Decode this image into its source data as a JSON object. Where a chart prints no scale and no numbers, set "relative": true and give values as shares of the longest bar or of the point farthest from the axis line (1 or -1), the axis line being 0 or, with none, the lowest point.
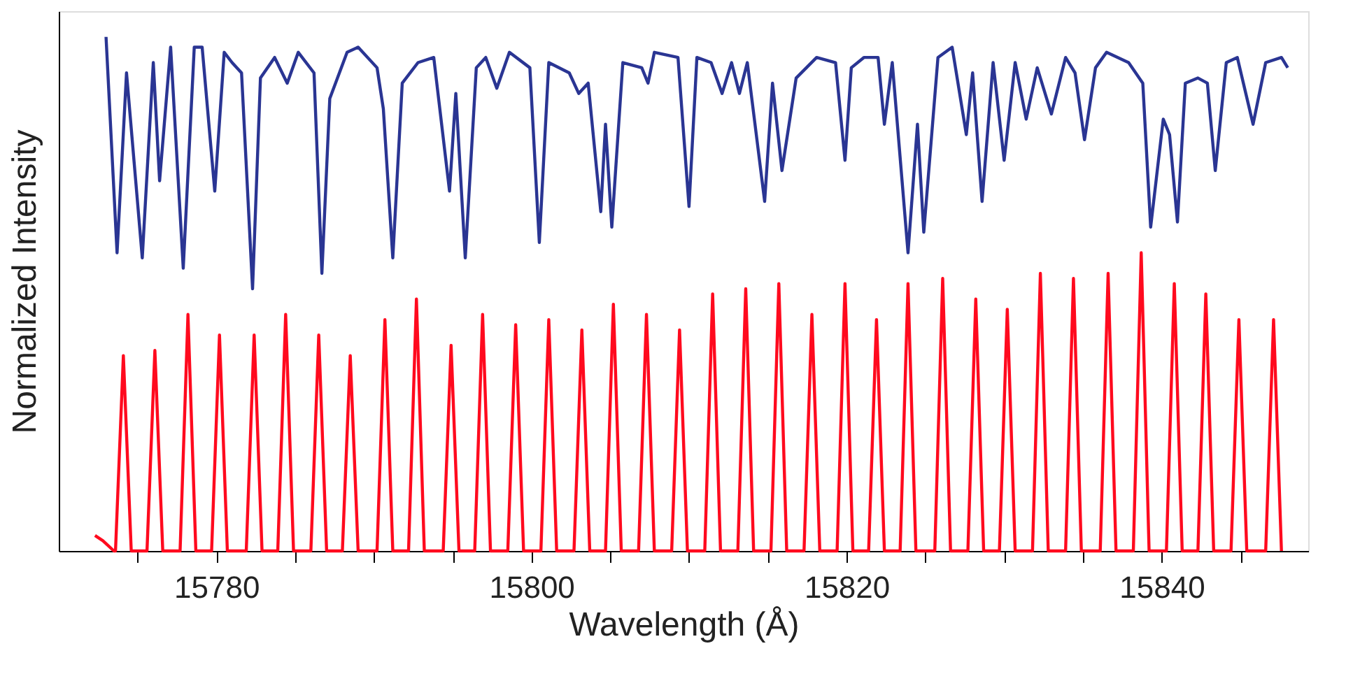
{
  "chart_data": {
    "type": "line",
    "relative": true,
    "xlabel": "Wavelength (Å)",
    "ylabel": "Normalized Intensity",
    "xlim": [
      15770.0,
      15849.3
    ],
    "xticks": [
      {
        "value": 15775,
        "label": null
      },
      15780,
      {
        "value": 15785,
        "label": null
      },
      {
        "value": 15790,
        "label": null
      },
      {
        "value": 15795,
        "label": null
      },
      15800,
      {
        "value": 15805,
        "label": null
      },
      {
        "value": 15810,
        "label": null
      },
      {
        "value": 15815,
        "label": null
      },
      15820,
      {
        "value": 15825,
        "label": null
      },
      {
        "value": 15830,
        "label": null
      },
      {
        "value": 15835,
        "label": null
      },
      15840,
      {
        "value": 15845,
        "label": null
      }
    ],
    "tick_labels": "x",
    "line_style": "solid",
    "series": [
      {
        "color": "#2a3593",
        "x": [
          15773.0,
          15773.7,
          15774.3,
          15775.3,
          15776.0,
          15776.4,
          15777.1,
          15777.9,
          15778.6,
          15779.1,
          15779.9,
          15780.5,
          15781.0,
          15781.6,
          15782.3,
          15782.8,
          15783.7,
          15784.5,
          15785.2,
          15786.2,
          15786.7,
          15787.2,
          15788.3,
          15789.0,
          15790.2,
          15790.6,
          15791.2,
          15791.8,
          15792.8,
          15793.8,
          15794.8,
          15795.2,
          15795.8,
          15796.5,
          15797.1,
          15797.8,
          15798.6,
          15799.9,
          15800.5,
          15801.1,
          15802.4,
          15803.0,
          15803.6,
          15804.4,
          15804.7,
          15805.1,
          15805.8,
          15807.0,
          15807.4,
          15807.8,
          15809.3,
          15810.0,
          15810.5,
          15811.4,
          15812.1,
          15812.7,
          15813.2,
          15813.7,
          15814.8,
          15815.3,
          15815.9,
          15816.8,
          15818.1,
          15819.3,
          15819.9,
          15820.3,
          15821.1,
          15822.0,
          15822.4,
          15822.9,
          15823.9,
          15824.5,
          15824.9,
          15825.8,
          15826.7,
          15827.6,
          15828.0,
          15828.6,
          15829.3,
          15830.0,
          15830.7,
          15831.4,
          15832.1,
          15833.0,
          15833.9,
          15834.5,
          15835.1,
          15835.8,
          15836.5,
          15837.9,
          15838.8,
          15839.3,
          15840.1,
          15840.5,
          15841.0,
          15841.5,
          15842.3,
          15842.9,
          15843.4,
          15844.1,
          15844.8,
          15845.8,
          15846.6,
          15847.6,
          15848.0
        ],
        "values": [
          1.0,
          0.58,
          0.93,
          0.57,
          0.95,
          0.72,
          0.98,
          0.55,
          0.98,
          0.98,
          0.7,
          0.97,
          0.95,
          0.93,
          0.51,
          0.92,
          0.96,
          0.91,
          0.97,
          0.93,
          0.54,
          0.88,
          0.97,
          0.98,
          0.94,
          0.86,
          0.57,
          0.91,
          0.95,
          0.96,
          0.7,
          0.89,
          0.57,
          0.94,
          0.96,
          0.9,
          0.97,
          0.94,
          0.6,
          0.95,
          0.93,
          0.89,
          0.91,
          0.66,
          0.83,
          0.63,
          0.95,
          0.94,
          0.91,
          0.97,
          0.96,
          0.67,
          0.96,
          0.95,
          0.89,
          0.95,
          0.89,
          0.95,
          0.68,
          0.91,
          0.74,
          0.92,
          0.96,
          0.95,
          0.76,
          0.94,
          0.96,
          0.96,
          0.83,
          0.95,
          0.58,
          0.83,
          0.62,
          0.96,
          0.98,
          0.81,
          0.93,
          0.68,
          0.95,
          0.76,
          0.95,
          0.84,
          0.94,
          0.85,
          0.96,
          0.93,
          0.8,
          0.94,
          0.97,
          0.95,
          0.91,
          0.63,
          0.84,
          0.81,
          0.64,
          0.91,
          0.92,
          0.91,
          0.74,
          0.95,
          0.96,
          0.83,
          0.95,
          0.96,
          0.94
        ]
      },
      {
        "color": "#ff0a1e",
        "x": [
          15772.3,
          15772.8,
          15773.5,
          15773.6,
          15774.1,
          15774.6,
          15775.6,
          15776.1,
          15776.6,
          15777.7,
          15778.2,
          15778.7,
          15779.7,
          15780.2,
          15780.7,
          15781.9,
          15782.4,
          15782.9,
          15783.9,
          15784.4,
          15784.9,
          15786.0,
          15786.5,
          15787.0,
          15788.0,
          15788.5,
          15789.0,
          15790.2,
          15790.7,
          15791.2,
          15792.2,
          15792.7,
          15793.2,
          15794.4,
          15794.9,
          15795.4,
          15796.4,
          15796.9,
          15797.4,
          15798.5,
          15799.0,
          15799.5,
          15800.6,
          15801.1,
          15801.6,
          15802.7,
          15803.2,
          15803.7,
          15804.7,
          15805.2,
          15805.7,
          15806.8,
          15807.3,
          15807.8,
          15808.9,
          15809.4,
          15809.9,
          15811.0,
          15811.5,
          15812.0,
          15813.1,
          15813.6,
          15814.1,
          15815.2,
          15815.7,
          15816.2,
          15817.3,
          15817.8,
          15818.3,
          15819.4,
          15819.9,
          15820.4,
          15821.4,
          15821.9,
          15822.4,
          15823.4,
          15823.9,
          15824.4,
          15825.6,
          15826.1,
          15826.6,
          15827.7,
          15828.2,
          15828.7,
          15829.7,
          15830.2,
          15830.7,
          15831.8,
          15832.3,
          15832.8,
          15833.9,
          15834.4,
          15834.9,
          15836.1,
          15836.6,
          15837.1,
          15838.2,
          15838.7,
          15839.2,
          15840.3,
          15840.8,
          15841.3,
          15842.3,
          15842.8,
          15843.3,
          15844.4,
          15844.9,
          15845.4,
          15846.6,
          15847.1,
          15847.6
        ],
        "values": [
          0.03,
          0.02,
          0,
          0,
          0.38,
          0,
          0,
          0.39,
          0,
          0,
          0.46,
          0,
          0,
          0.42,
          0,
          0,
          0.42,
          0,
          0,
          0.46,
          0,
          0,
          0.42,
          0,
          0,
          0.38,
          0,
          0,
          0.45,
          0,
          0,
          0.49,
          0,
          0,
          0.4,
          0,
          0,
          0.46,
          0,
          0,
          0.44,
          0,
          0,
          0.45,
          0,
          0,
          0.43,
          0,
          0,
          0.48,
          0,
          0,
          0.46,
          0,
          0,
          0.43,
          0,
          0,
          0.5,
          0,
          0,
          0.51,
          0,
          0,
          0.52,
          0,
          0,
          0.46,
          0,
          0,
          0.52,
          0,
          0,
          0.45,
          0,
          0,
          0.52,
          0,
          0,
          0.53,
          0,
          0,
          0.49,
          0,
          0,
          0.47,
          0,
          0,
          0.54,
          0,
          0,
          0.53,
          0,
          0,
          0.54,
          0,
          0,
          0.58,
          0,
          0,
          0.52,
          0,
          0,
          0.5,
          0,
          0,
          0.45,
          0,
          0,
          0.45,
          0
        ]
      }
    ]
  }
}
